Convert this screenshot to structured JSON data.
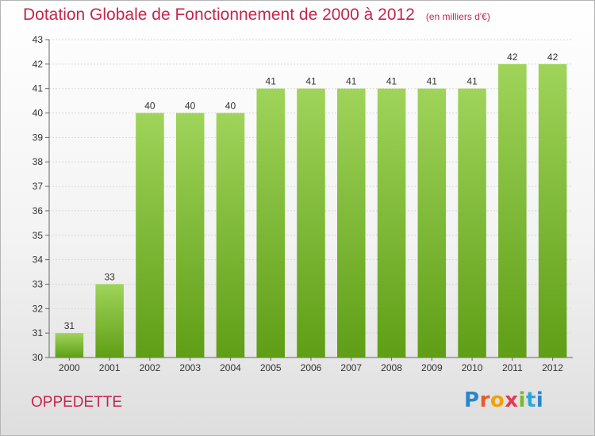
{
  "title": {
    "main": "Dotation Globale de Fonctionnement de 2000 à 2012",
    "unit": "(en milliers d'€)"
  },
  "commune": "OPPEDETTE",
  "logo": {
    "text": "Proxiti"
  },
  "colors": {
    "title": "#c4264e",
    "bar_top": "#9fd45a",
    "bar_bottom": "#5f9e16",
    "axis": "#666666",
    "grid": "#d9d9d9"
  },
  "chart_data": {
    "type": "bar",
    "categories": [
      "2000",
      "2001",
      "2002",
      "2003",
      "2004",
      "2005",
      "2006",
      "2007",
      "2008",
      "2009",
      "2010",
      "2011",
      "2012"
    ],
    "values": [
      31,
      33,
      40,
      40,
      40,
      41,
      41,
      41,
      41,
      41,
      41,
      42,
      42
    ],
    "data_labels": [
      "31",
      "33",
      "40",
      "40",
      "40",
      "41",
      "41",
      "41",
      "41",
      "41",
      "41",
      "42",
      "42"
    ],
    "title": "Dotation Globale de Fonctionnement de 2000 à 2012",
    "xlabel": "",
    "ylabel": "",
    "ylim": [
      30,
      43
    ],
    "yticks": [
      30,
      31,
      32,
      33,
      34,
      35,
      36,
      37,
      38,
      39,
      40,
      41,
      42,
      43
    ],
    "grid": true,
    "legend": "none"
  }
}
